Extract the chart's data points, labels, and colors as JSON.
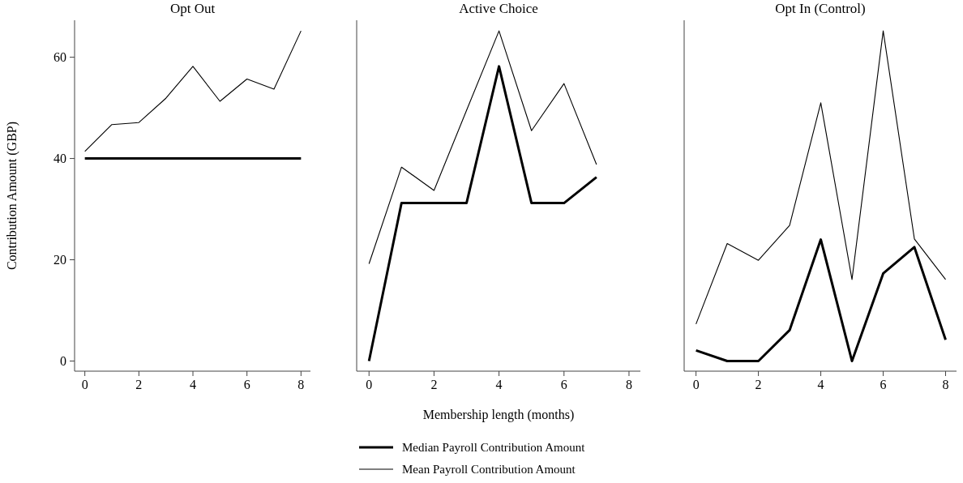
{
  "chart_data": [
    {
      "type": "line",
      "title": "Opt Out",
      "ylabel": "Contribution Amount (GBP)",
      "x": [
        0,
        1,
        2,
        3,
        4,
        5,
        6,
        7,
        8
      ],
      "xlim": [
        -0.38,
        8.35
      ],
      "xticks": [
        0,
        2,
        4,
        6,
        8
      ],
      "ylim": [
        -2,
        67.3
      ],
      "yticks": [
        0,
        20,
        40,
        60
      ],
      "grid": false,
      "legend": false,
      "series": [
        {
          "color": "#000000",
          "values": [
            40,
            40,
            40,
            40,
            40,
            40,
            40,
            40,
            40
          ]
        },
        {
          "color": "#000000",
          "values": [
            41.4,
            46.7,
            47.1,
            51.9,
            58.2,
            51.3,
            55.7,
            53.7,
            65.2
          ]
        }
      ]
    },
    {
      "type": "line",
      "title": "Active Choice",
      "xlabel": "Membership length (months)",
      "x": [
        0,
        1,
        2,
        3,
        4,
        5,
        6,
        7
      ],
      "xlim": [
        -0.38,
        8.35
      ],
      "xticks": [
        0,
        2,
        4,
        6,
        8
      ],
      "ylim": [
        -2,
        67.3
      ],
      "tick_labels": "x",
      "grid": false,
      "legend": "bottom",
      "series": [
        {
          "name": "Median Payroll Contribution Amount",
          "color": "#000000",
          "values": [
            0,
            31.2,
            31.2,
            31.2,
            58.2,
            31.2,
            31.2,
            36.3
          ]
        },
        {
          "name": "Mean Payroll Contribution Amount",
          "color": "#000000",
          "values": [
            19.2,
            38.3,
            33.7,
            49.5,
            65.2,
            45.5,
            54.8,
            38.8
          ]
        }
      ]
    },
    {
      "type": "line",
      "title": "Opt In (Control)",
      "x": [
        0,
        1,
        2,
        3,
        4,
        5,
        6,
        7,
        8
      ],
      "xlim": [
        -0.38,
        8.35
      ],
      "xticks": [
        0,
        2,
        4,
        6,
        8
      ],
      "ylim": [
        -2,
        67.3
      ],
      "tick_labels": "x",
      "grid": false,
      "legend": false,
      "series": [
        {
          "color": "#000000",
          "values": [
            2.1,
            0,
            0,
            6.1,
            24.0,
            0,
            17.3,
            22.5,
            4.2
          ]
        },
        {
          "color": "#000000",
          "values": [
            7.3,
            23.2,
            19.9,
            26.8,
            51.0,
            16.1,
            65.2,
            24.1,
            16.1
          ]
        }
      ]
    }
  ]
}
